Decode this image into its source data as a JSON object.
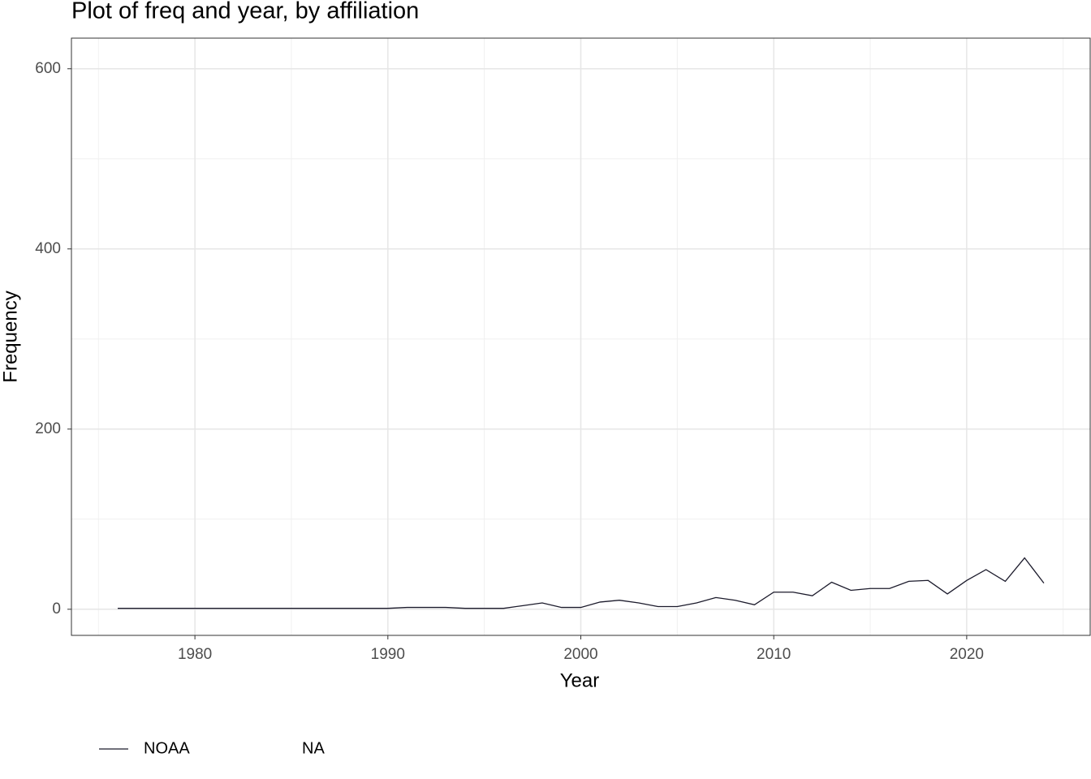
{
  "chart_data": {
    "type": "line",
    "title": "Plot of freq and year, by affiliation",
    "x_label": "Year",
    "y_label": "Frequency",
    "x": [
      1976,
      1977,
      1978,
      1979,
      1980,
      1981,
      1982,
      1983,
      1984,
      1985,
      1986,
      1987,
      1988,
      1989,
      1990,
      1991,
      1992,
      1993,
      1994,
      1995,
      1996,
      1997,
      1998,
      1999,
      2000,
      2001,
      2002,
      2003,
      2004,
      2005,
      2006,
      2007,
      2008,
      2009,
      2010,
      2011,
      2012,
      2013,
      2014,
      2015,
      2016,
      2017,
      2018,
      2019,
      2020,
      2021,
      2022,
      2023,
      2024
    ],
    "series": [
      {
        "name": "NOAA",
        "color": "#1b1a2b",
        "values": [
          1,
          1,
          1,
          1,
          1,
          1,
          1,
          1,
          1,
          1,
          1,
          1,
          1,
          1,
          1,
          2,
          2,
          2,
          1,
          1,
          1,
          4,
          7,
          2,
          2,
          8,
          10,
          7,
          3,
          3,
          7,
          13,
          10,
          5,
          19,
          19,
          15,
          30,
          21,
          23,
          23,
          31,
          32,
          17,
          32,
          44,
          31,
          57,
          29
        ]
      },
      {
        "name": "NA",
        "color": null,
        "values": [
          null,
          null,
          null,
          null,
          null,
          null,
          null,
          null,
          null,
          null,
          null,
          null,
          null,
          null,
          null,
          null,
          null,
          null,
          null,
          null,
          null,
          null,
          null,
          null,
          null,
          null,
          null,
          null,
          null,
          null,
          null,
          null,
          null,
          null,
          null,
          null,
          null,
          null,
          null,
          null,
          null,
          null,
          null,
          null,
          null,
          null,
          null,
          null,
          null
        ]
      }
    ],
    "xlim": [
      1973.6,
      2026.4
    ],
    "ylim": [
      -29,
      634
    ],
    "xticks": [
      1980,
      1990,
      2000,
      2010,
      2020
    ],
    "yticks": [
      0,
      200,
      400,
      600
    ],
    "minor_xticks": [
      1975,
      1985,
      1995,
      2005,
      2015,
      2025
    ],
    "minor_yticks": [
      100,
      300,
      500
    ],
    "grid": true,
    "legend": "bottom"
  }
}
